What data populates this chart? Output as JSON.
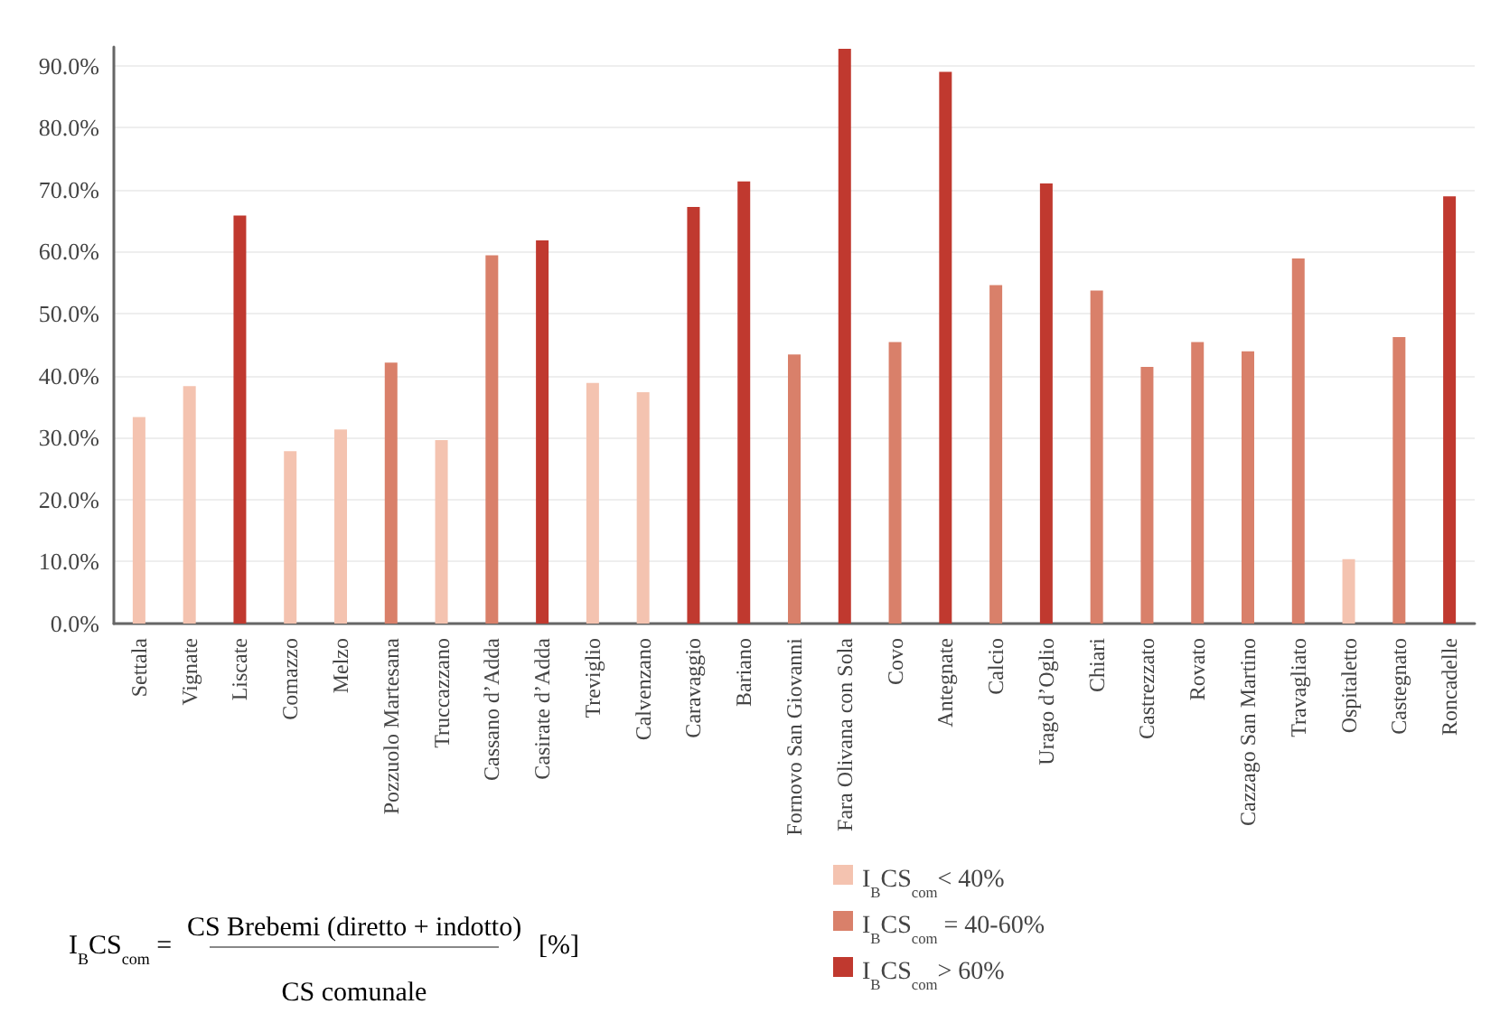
{
  "chart_data": {
    "type": "bar",
    "stacked": true,
    "categories": [
      "Settala",
      "Vignate",
      "Liscate",
      "Comazzo",
      "Melzo",
      "Pozzuolo Martesana",
      "Truccazzano",
      "Cassano d’Adda",
      "Casirate d’Adda",
      "Treviglio",
      "Calvenzano",
      "Caravaggio",
      "Bariano",
      "Fornovo San Giovanni",
      "Fara Olivana con Sola",
      "Covo",
      "Antegnate",
      "Calcio",
      "Urago d’Oglio",
      "Chiari",
      "Castrezzato",
      "Rovato",
      "Cazzago San Martino",
      "Travagliato",
      "Ospitaletto",
      "Castegnato",
      "Roncadelle"
    ],
    "series": [
      {
        "name": "I$_{B}$CS$_{com}$< 40%",
        "color": "#f4c3b0",
        "values": [
          33.3,
          38.3,
          null,
          27.8,
          31.3,
          null,
          29.6,
          null,
          null,
          38.8,
          37.3,
          null,
          null,
          null,
          null,
          null,
          null,
          null,
          null,
          null,
          null,
          null,
          null,
          null,
          10.4,
          null,
          null
        ]
      },
      {
        "name": "I$_{B}$CS$_{com}$ = 40-60%",
        "color": "#d9806a",
        "values": [
          null,
          null,
          null,
          null,
          null,
          42.1,
          null,
          59.4,
          null,
          null,
          null,
          null,
          null,
          43.4,
          null,
          45.4,
          null,
          54.6,
          null,
          53.7,
          41.4,
          45.4,
          43.9,
          58.9,
          null,
          46.2,
          null
        ]
      },
      {
        "name": "I$_{B}$CS$_{com}$> 60%",
        "color": "#c0392f",
        "values": [
          null,
          null,
          65.8,
          null,
          null,
          null,
          null,
          null,
          61.8,
          null,
          null,
          67.2,
          71.3,
          null,
          92.7,
          null,
          89.0,
          null,
          71.0,
          null,
          null,
          null,
          null,
          null,
          null,
          null,
          68.9
        ]
      }
    ],
    "ylim": [
      0,
      93
    ],
    "yticks": [
      {
        "value": 0,
        "label": "0.0%"
      },
      {
        "value": 10,
        "label": "10.0%"
      },
      {
        "value": 20,
        "label": "20.0%"
      },
      {
        "value": 30,
        "label": "30.0%"
      },
      {
        "value": 40,
        "label": "40.0%"
      },
      {
        "value": 50,
        "label": "50.0%"
      },
      {
        "value": 60,
        "label": "60.0%"
      },
      {
        "value": 70,
        "label": "70.0%"
      },
      {
        "value": 80,
        "label": "80.0%"
      },
      {
        "value": 90,
        "label": "90.0%"
      }
    ],
    "grid": "y",
    "legend": "bottom",
    "annotations": [
      "I$_{B}$CS$_{com}$ =",
      "CS Brebemi (diretto + indotto)",
      "CS comunale",
      "[%]"
    ]
  }
}
